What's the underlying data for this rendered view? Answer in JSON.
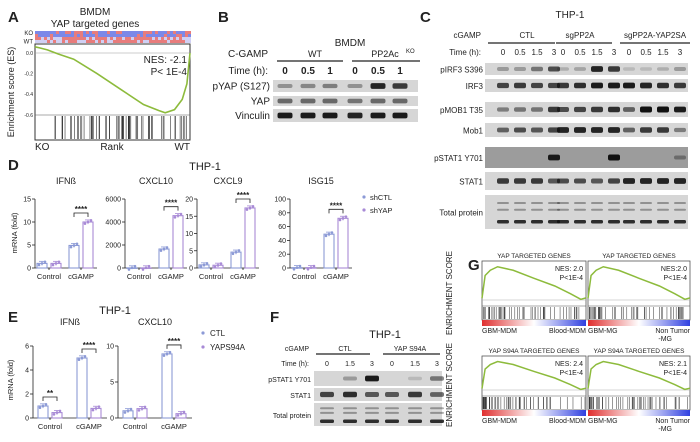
{
  "panels": {
    "a": "A",
    "b": "B",
    "c": "C",
    "d": "D",
    "e": "E",
    "f": "F",
    "g": "G"
  },
  "colors": {
    "gsea_curve": "#8dbb3c",
    "series1": "#8c9ad6",
    "series2": "#a88ad6",
    "blot_bg": "#d6d6d6",
    "blot_dark_bg": "#9c9c9c",
    "heat_red": "#e05050",
    "heat_blue": "#5060e0"
  },
  "panel_a": {
    "title": "BMDM",
    "subtitle": "YAP targeted genes",
    "heatmap_labels": [
      "KO",
      "WT"
    ],
    "ylabel": "Enrichment score (ES)",
    "yticks": [
      "0.0",
      "-0.2",
      "-0.4",
      "-0.6"
    ],
    "nes": "NES: -2.1",
    "p": "P< 1E-4",
    "x_labels": [
      "KO",
      "Rank",
      "WT"
    ],
    "curve": [
      [
        0,
        0.06
      ],
      [
        0.03,
        0.05
      ],
      [
        0.08,
        0.03
      ],
      [
        0.15,
        -0.01
      ],
      [
        0.25,
        -0.06
      ],
      [
        0.4,
        -0.2
      ],
      [
        0.55,
        -0.35
      ],
      [
        0.7,
        -0.5
      ],
      [
        0.8,
        -0.56
      ],
      [
        0.84,
        -0.58
      ],
      [
        0.9,
        -0.55
      ],
      [
        0.95,
        -0.45
      ],
      [
        0.98,
        -0.3
      ],
      [
        1,
        0.0
      ]
    ]
  },
  "panel_b": {
    "title": "BMDM",
    "treatment_label": "C-GAMP",
    "time_label": "Time (h):",
    "groups": [
      "WT",
      "PP2Ac",
      "KO"
    ],
    "times": [
      "0",
      "0.5",
      "1",
      "0",
      "0.5",
      "1"
    ],
    "rows": [
      {
        "label": "pYAP (S127)",
        "bands": [
          0.35,
          0.4,
          0.45,
          0.35,
          0.9,
          0.8
        ]
      },
      {
        "label": "YAP",
        "bands": [
          0.55,
          0.55,
          0.55,
          0.5,
          0.55,
          0.55
        ]
      },
      {
        "label": "Vinculin",
        "bands": [
          0.95,
          0.95,
          0.95,
          0.9,
          0.95,
          0.95
        ]
      }
    ]
  },
  "panel_c": {
    "title": "THP-1",
    "treatment_label": "cGAMP",
    "time_label": "Time (h):",
    "groups": [
      "CTL",
      "sgPP2A",
      "sgPP2A-YAP2SA"
    ],
    "times": [
      "0",
      "0.5",
      "1.5",
      "3",
      "0",
      "0.5",
      "1.5",
      "3",
      "0",
      "0.5",
      "1.5",
      "3"
    ],
    "rows": [
      {
        "label": "pIRF3 S396",
        "bands": [
          0.3,
          0.3,
          0.5,
          0.7,
          0.2,
          0.25,
          0.9,
          0.8,
          0.15,
          0.15,
          0.2,
          0.3
        ]
      },
      {
        "label": "IRF3",
        "bands": [
          0.75,
          0.8,
          0.75,
          0.75,
          0.8,
          0.85,
          0.95,
          0.95,
          0.95,
          0.9,
          0.85,
          0.8
        ]
      },
      {
        "label": "pMOB1 T35",
        "bands": [
          0.45,
          0.5,
          0.5,
          0.8,
          0.7,
          0.75,
          0.8,
          0.85,
          0.6,
          1,
          1,
          0.95
        ]
      },
      {
        "label": "Mob1",
        "bands": [
          0.6,
          0.7,
          0.65,
          0.75,
          0.9,
          0.9,
          0.9,
          0.9,
          0.6,
          0.8,
          0.8,
          0.45
        ]
      },
      {
        "label": "pSTAT1 Y701",
        "bands": [
          0,
          0,
          0,
          0.95,
          0,
          0,
          0,
          1,
          0,
          0,
          0,
          0.35
        ]
      },
      {
        "label": "STAT1",
        "bands": [
          0.8,
          0.8,
          0.8,
          0.65,
          0.7,
          0.7,
          0.65,
          0.75,
          0.9,
          0.9,
          0.9,
          0.9
        ]
      },
      {
        "label": "Total protein",
        "bands": [
          0.7,
          0.7,
          0.7,
          0.7,
          0.7,
          0.7,
          0.7,
          0.7,
          0.7,
          0.7,
          0.7,
          0.7
        ]
      }
    ]
  },
  "panel_d": {
    "title": "THP-1",
    "ylabel": "mRNA (fold)",
    "legend": [
      "shCTL",
      "shYAP"
    ],
    "chart_data": [
      {
        "type": "bar",
        "title": "IFNß",
        "categories": [
          "Control",
          "cGAMP"
        ],
        "series": [
          {
            "name": "shCTL",
            "values": [
              1.0,
              4.9
            ]
          },
          {
            "name": "shYAP",
            "values": [
              1.0,
              10.0
            ]
          }
        ],
        "ylim": [
          0,
          15
        ],
        "yticks": [
          0,
          5,
          10,
          15
        ],
        "significance": [
          {
            "category": "cGAMP",
            "label": "****"
          }
        ]
      },
      {
        "type": "bar",
        "title": "CXCL10",
        "categories": [
          "Control",
          "cGAMP"
        ],
        "series": [
          {
            "name": "shCTL",
            "values": [
              10,
              1650
            ]
          },
          {
            "name": "shYAP",
            "values": [
              10,
              4550
            ]
          }
        ],
        "ylim": [
          0,
          6000
        ],
        "yticks": [
          0,
          2000,
          4000,
          6000
        ],
        "significance": [
          {
            "category": "cGAMP",
            "label": "****"
          }
        ]
      },
      {
        "type": "bar",
        "title": "CXCL9",
        "categories": [
          "Control",
          "cGAMP"
        ],
        "series": [
          {
            "name": "shCTL",
            "values": [
              0.9,
              4.6
            ]
          },
          {
            "name": "shYAP",
            "values": [
              0.8,
              17.4
            ]
          }
        ],
        "ylim": [
          0,
          20
        ],
        "yticks": [
          0,
          5,
          10,
          15,
          20
        ],
        "significance": [
          {
            "category": "cGAMP",
            "label": "****"
          }
        ]
      },
      {
        "type": "bar",
        "title": "ISG15",
        "categories": [
          "Control",
          "cGAMP"
        ],
        "series": [
          {
            "name": "shCTL",
            "values": [
              0.5,
              49
            ]
          },
          {
            "name": "shYAP",
            "values": [
              0.5,
              72
            ]
          }
        ],
        "ylim": [
          0,
          100
        ],
        "yticks": [
          0,
          20,
          40,
          60,
          80,
          100
        ],
        "significance": [
          {
            "category": "cGAMP",
            "label": "****"
          }
        ]
      }
    ]
  },
  "panel_e": {
    "title": "THP-1",
    "ylabel": "mRNA (fold)",
    "legend": [
      "CTL",
      "YAPS94A"
    ],
    "chart_data": [
      {
        "type": "bar",
        "title": "IFNß",
        "categories": [
          "Control",
          "cGAMP"
        ],
        "series": [
          {
            "name": "CTL",
            "values": [
              1.0,
              5.0
            ]
          },
          {
            "name": "YAPS94A",
            "values": [
              0.45,
              0.8
            ]
          }
        ],
        "ylim": [
          0,
          6
        ],
        "yticks": [
          0,
          2,
          4,
          6
        ],
        "significance": [
          {
            "category": "Control",
            "label": "**"
          },
          {
            "category": "cGAMP",
            "label": "****"
          }
        ]
      },
      {
        "type": "bar",
        "title": "CXCL10",
        "categories": [
          "Control",
          "cGAMP"
        ],
        "series": [
          {
            "name": "CTL",
            "values": [
              1.0,
              8.9
            ]
          },
          {
            "name": "YAPS94A",
            "values": [
              1.3,
              0.6
            ]
          }
        ],
        "ylim": [
          0,
          10
        ],
        "yticks": [
          0,
          5,
          10
        ],
        "significance": [
          {
            "category": "cGAMP",
            "label": "****"
          }
        ]
      }
    ]
  },
  "panel_f": {
    "title": "THP-1",
    "treatment_label": "cGAMP",
    "time_label": "Time (h):",
    "groups": [
      "CTL",
      "YAP S94A"
    ],
    "times": [
      "0",
      "1.5",
      "3",
      "0",
      "1.5",
      "3"
    ],
    "rows": [
      {
        "label": "pSTAT1 Y701",
        "bands": [
          0,
          0.3,
          0.95,
          0,
          0.15,
          0.5
        ]
      },
      {
        "label": "STAT1",
        "bands": [
          0.75,
          0.85,
          0.65,
          0.65,
          0.8,
          0.6
        ]
      },
      {
        "label": "Total protein",
        "bands": [
          0.8,
          0.8,
          0.8,
          0.8,
          0.8,
          0.8
        ]
      }
    ]
  },
  "panel_g": {
    "ylabel": "ENRICHMENT SCORE",
    "plots": [
      {
        "title": "YAP TARGETED GENES",
        "nes": "NES: 2.0",
        "p": "P<1E-4",
        "left": "GBM-MDM",
        "right": "Blood-MDM"
      },
      {
        "title": "YAP TARGETED GENES",
        "nes": "NES:2.0",
        "p": "P<1E-4",
        "left": "GBM-MG",
        "right": "Non Tumor\n-MG"
      },
      {
        "title": "YAP S94A TARGETED GENES",
        "nes": "NES: 2.4",
        "p": "P<1E-4",
        "left": "GBM-MDM",
        "right": "Blood-MDM"
      },
      {
        "title": "YAP S94A TARGETED GENES",
        "nes": "NES: 2.1",
        "p": "P<1E-4",
        "left": "GBM-MG",
        "right": "Non Tumor\n-MG"
      }
    ],
    "curve": [
      [
        0,
        0.05
      ],
      [
        0.03,
        0.7
      ],
      [
        0.08,
        0.85
      ],
      [
        0.15,
        0.95
      ],
      [
        0.3,
        0.85
      ],
      [
        0.5,
        0.62
      ],
      [
        0.7,
        0.4
      ],
      [
        0.85,
        0.18
      ],
      [
        0.95,
        0.02
      ],
      [
        1,
        0.06
      ]
    ]
  }
}
